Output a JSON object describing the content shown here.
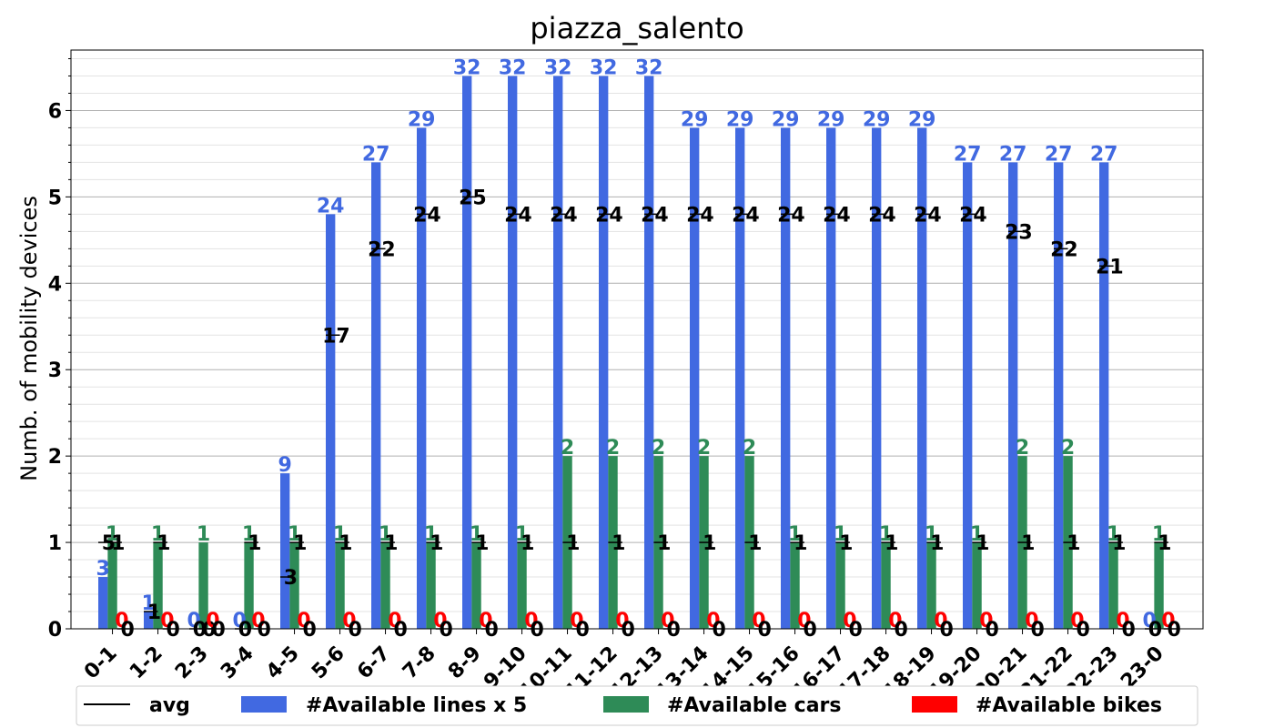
{
  "chart_data": {
    "type": "bar",
    "title": "piazza_salento",
    "xlabel": "",
    "ylabel": "Numb. of mobility devices",
    "ylim": [
      0,
      6.7
    ],
    "yticks": [
      "0",
      "1",
      "2",
      "3",
      "4",
      "5",
      "6"
    ],
    "grid": true,
    "legend_position": "bottom",
    "categories": [
      "0-1",
      "1-2",
      "2-3",
      "3-4",
      "4-5",
      "5-6",
      "6-7",
      "7-8",
      "8-9",
      "9-10",
      "10-11",
      "11-12",
      "12-13",
      "13-14",
      "14-15",
      "15-16",
      "16-17",
      "17-18",
      "18-19",
      "19-20",
      "20-21",
      "21-22",
      "22-23",
      "23-0"
    ],
    "series": [
      {
        "name": "#Available lines x 5",
        "color": "#4169e1",
        "values": [
          0.6,
          0.2,
          0,
          0,
          1.8,
          4.8,
          5.4,
          5.8,
          6.4,
          6.4,
          6.4,
          6.4,
          6.4,
          5.8,
          5.8,
          5.8,
          5.8,
          5.8,
          5.8,
          5.4,
          5.4,
          5.4,
          5.4,
          0
        ],
        "labels": [
          "3",
          "1",
          "0",
          "0",
          "9",
          "24",
          "27",
          "29",
          "32",
          "32",
          "32",
          "32",
          "32",
          "29",
          "29",
          "29",
          "29",
          "29",
          "29",
          "27",
          "27",
          "27",
          "27",
          "0"
        ],
        "avg_values": [
          5,
          1,
          0,
          0,
          3,
          17,
          22,
          24,
          25,
          24,
          24,
          24,
          24,
          24,
          24,
          24,
          24,
          24,
          24,
          24,
          23,
          22,
          21,
          0
        ],
        "avg_labels": [
          "5",
          "1",
          "0",
          "0",
          "3",
          "17",
          "22",
          "24",
          "25",
          "24",
          "24",
          "24",
          "24",
          "24",
          "24",
          "24",
          "24",
          "24",
          "24",
          "24",
          "23",
          "22",
          "21",
          "0"
        ]
      },
      {
        "name": "#Available cars",
        "color": "#2e8b57",
        "values": [
          1,
          1,
          1,
          1,
          1,
          1,
          1,
          1,
          1,
          1,
          2,
          2,
          2,
          2,
          2,
          1,
          1,
          1,
          1,
          1,
          2,
          2,
          1,
          1
        ],
        "labels": [
          "1",
          "1",
          "1",
          "1",
          "1",
          "1",
          "1",
          "1",
          "1",
          "1",
          "2",
          "2",
          "2",
          "2",
          "2",
          "1",
          "1",
          "1",
          "1",
          "1",
          "2",
          "2",
          "1",
          "1"
        ],
        "avg_values": [
          1,
          1,
          0,
          1,
          1,
          1,
          1,
          1,
          1,
          1,
          1,
          1,
          1,
          1,
          1,
          1,
          1,
          1,
          1,
          1,
          1,
          1,
          1,
          1
        ],
        "avg_labels": [
          "1",
          "1",
          "0",
          "1",
          "1",
          "1",
          "1",
          "1",
          "1",
          "1",
          "1",
          "1",
          "1",
          "1",
          "1",
          "1",
          "1",
          "1",
          "1",
          "1",
          "1",
          "1",
          "1",
          "1"
        ]
      },
      {
        "name": "#Available bikes",
        "color": "#ff0000",
        "values": [
          0,
          0,
          0,
          0,
          0,
          0,
          0,
          0,
          0,
          0,
          0,
          0,
          0,
          0,
          0,
          0,
          0,
          0,
          0,
          0,
          0,
          0,
          0,
          0
        ],
        "labels": [
          "0",
          "0",
          "0",
          "0",
          "0",
          "0",
          "0",
          "0",
          "0",
          "0",
          "0",
          "0",
          "0",
          "0",
          "0",
          "0",
          "0",
          "0",
          "0",
          "0",
          "0",
          "0",
          "0",
          "0"
        ],
        "avg_values": [
          0,
          0,
          0,
          0,
          0,
          0,
          0,
          0,
          0,
          0,
          0,
          0,
          0,
          0,
          0,
          0,
          0,
          0,
          0,
          0,
          0,
          0,
          0,
          0
        ],
        "avg_labels": [
          "0",
          "0",
          "0",
          "0",
          "0",
          "0",
          "0",
          "0",
          "0",
          "0",
          "0",
          "0",
          "0",
          "0",
          "0",
          "0",
          "0",
          "0",
          "0",
          "0",
          "0",
          "0",
          "0",
          "0"
        ]
      }
    ],
    "avg_legend": "avg"
  }
}
